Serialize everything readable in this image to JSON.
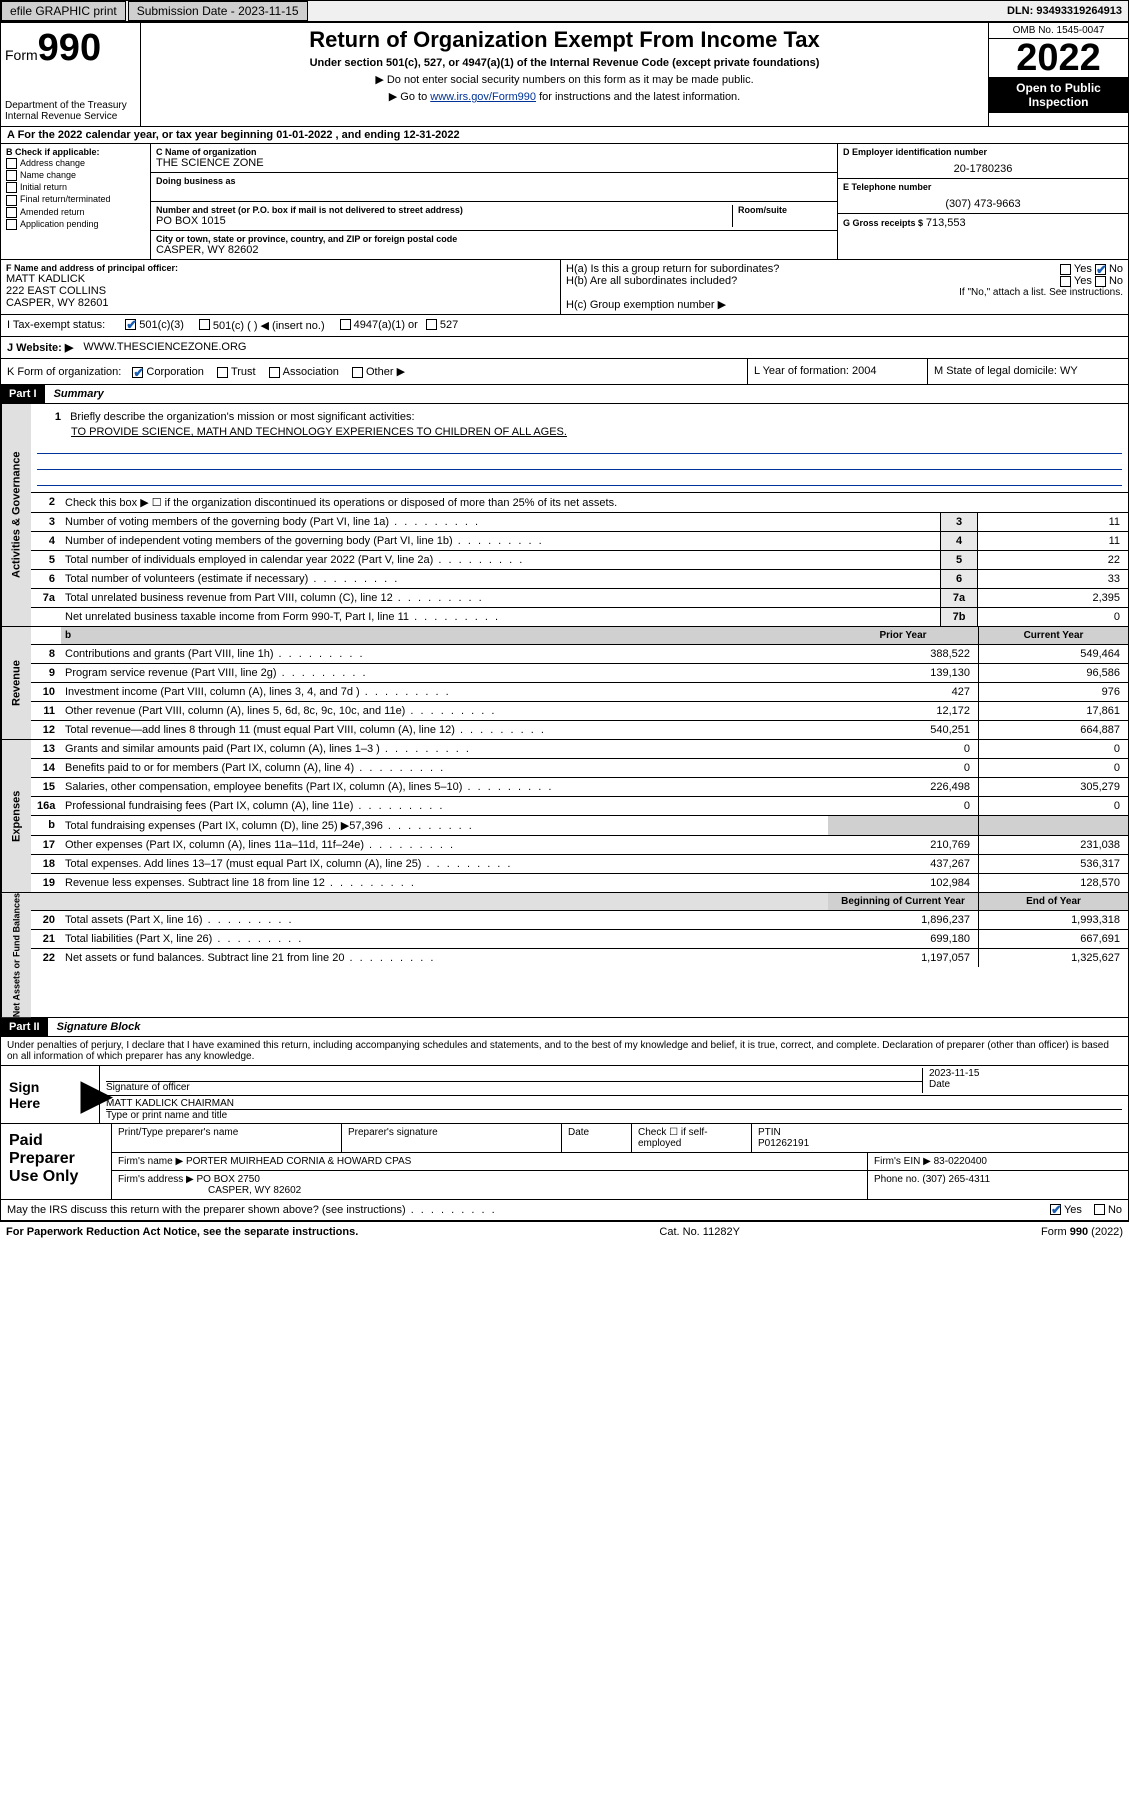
{
  "topbar": {
    "efile": "efile GRAPHIC print",
    "submission_label": "Submission Date - 2023-11-15",
    "dln": "DLN: 93493319264913"
  },
  "header": {
    "form_prefix": "Form",
    "form_number": "990",
    "dept": "Department of the Treasury Internal Revenue Service",
    "title": "Return of Organization Exempt From Income Tax",
    "subtitle": "Under section 501(c), 527, or 4947(a)(1) of the Internal Revenue Code (except private foundations)",
    "instruct1": "▶ Do not enter social security numbers on this form as it may be made public.",
    "instruct2_pre": "▶ Go to ",
    "instruct2_link": "www.irs.gov/Form990",
    "instruct2_post": " for instructions and the latest information.",
    "omb": "OMB No. 1545-0047",
    "year": "2022",
    "open_public": "Open to Public Inspection"
  },
  "A": {
    "text": "A For the 2022 calendar year, or tax year beginning 01-01-2022    , and ending 12-31-2022"
  },
  "B": {
    "label": "B Check if applicable:",
    "items": [
      "Address change",
      "Name change",
      "Initial return",
      "Final return/terminated",
      "Amended return",
      "Application pending"
    ]
  },
  "C": {
    "name_label": "C Name of organization",
    "name": "THE SCIENCE ZONE",
    "dba_label": "Doing business as",
    "street_label": "Number and street (or P.O. box if mail is not delivered to street address)",
    "room_label": "Room/suite",
    "street": "PO BOX 1015",
    "city_label": "City or town, state or province, country, and ZIP or foreign postal code",
    "city": "CASPER, WY  82602"
  },
  "D": {
    "label": "D Employer identification number",
    "value": "20-1780236"
  },
  "E": {
    "label": "E Telephone number",
    "value": "(307) 473-9663"
  },
  "G": {
    "label": "G Gross receipts $",
    "value": "713,553"
  },
  "F": {
    "label": "F  Name and address of principal officer:",
    "name": "MATT KADLICK",
    "addr1": "222 EAST COLLINS",
    "addr2": "CASPER, WY  82601"
  },
  "H": {
    "a": "H(a)  Is this a group return for subordinates?",
    "b": "H(b)  Are all subordinates included?",
    "b_note": "If \"No,\" attach a list. See instructions.",
    "c": "H(c)  Group exemption number ▶",
    "yes": "Yes",
    "no": "No"
  },
  "I": {
    "label": "I   Tax-exempt status:",
    "o1": "501(c)(3)",
    "o2": "501(c) (  ) ◀ (insert no.)",
    "o3": "4947(a)(1) or",
    "o4": "527"
  },
  "J": {
    "label": "J   Website: ▶",
    "value": "WWW.THESCIENCEZONE.ORG"
  },
  "K": {
    "label": "K Form of organization:",
    "o1": "Corporation",
    "o2": "Trust",
    "o3": "Association",
    "o4": "Other ▶"
  },
  "L": {
    "label": "L Year of formation: ",
    "value": "2004"
  },
  "M": {
    "label": "M State of legal domicile: ",
    "value": "WY"
  },
  "partI": {
    "header": "Part I",
    "title": "Summary",
    "mission_label": "Briefly describe the organization's mission or most significant activities:",
    "mission": "TO PROVIDE SCIENCE, MATH AND TECHNOLOGY EXPERIENCES TO CHILDREN OF ALL AGES.",
    "line2": "Check this box ▶ ☐  if the organization discontinued its operations or disposed of more than 25% of its net assets.",
    "prior_year": "Prior Year",
    "current_year": "Current Year",
    "begin_year": "Beginning of Current Year",
    "end_year": "End of Year",
    "vtabs": {
      "gov": "Activities & Governance",
      "rev": "Revenue",
      "exp": "Expenses",
      "net": "Net Assets or Fund Balances"
    },
    "gov": [
      {
        "n": "3",
        "t": "Number of voting members of the governing body (Part VI, line 1a)",
        "k": "3",
        "v": "11"
      },
      {
        "n": "4",
        "t": "Number of independent voting members of the governing body (Part VI, line 1b)",
        "k": "4",
        "v": "11"
      },
      {
        "n": "5",
        "t": "Total number of individuals employed in calendar year 2022 (Part V, line 2a)",
        "k": "5",
        "v": "22"
      },
      {
        "n": "6",
        "t": "Total number of volunteers (estimate if necessary)",
        "k": "6",
        "v": "33"
      },
      {
        "n": "7a",
        "t": "Total unrelated business revenue from Part VIII, column (C), line 12",
        "k": "7a",
        "v": "2,395"
      },
      {
        "n": "",
        "t": "Net unrelated business taxable income from Form 990-T, Part I, line 11",
        "k": "7b",
        "v": "0"
      }
    ],
    "rev": [
      {
        "n": "8",
        "t": "Contributions and grants (Part VIII, line 1h)",
        "p": "388,522",
        "c": "549,464"
      },
      {
        "n": "9",
        "t": "Program service revenue (Part VIII, line 2g)",
        "p": "139,130",
        "c": "96,586"
      },
      {
        "n": "10",
        "t": "Investment income (Part VIII, column (A), lines 3, 4, and 7d )",
        "p": "427",
        "c": "976"
      },
      {
        "n": "11",
        "t": "Other revenue (Part VIII, column (A), lines 5, 6d, 8c, 9c, 10c, and 11e)",
        "p": "12,172",
        "c": "17,861"
      },
      {
        "n": "12",
        "t": "Total revenue—add lines 8 through 11 (must equal Part VIII, column (A), line 12)",
        "p": "540,251",
        "c": "664,887"
      }
    ],
    "exp": [
      {
        "n": "13",
        "t": "Grants and similar amounts paid (Part IX, column (A), lines 1–3 )",
        "p": "0",
        "c": "0"
      },
      {
        "n": "14",
        "t": "Benefits paid to or for members (Part IX, column (A), line 4)",
        "p": "0",
        "c": "0"
      },
      {
        "n": "15",
        "t": "Salaries, other compensation, employee benefits (Part IX, column (A), lines 5–10)",
        "p": "226,498",
        "c": "305,279"
      },
      {
        "n": "16a",
        "t": "Professional fundraising fees (Part IX, column (A), line 11e)",
        "p": "0",
        "c": "0"
      },
      {
        "n": "b",
        "t": "Total fundraising expenses (Part IX, column (D), line 25) ▶57,396",
        "p": "",
        "c": "",
        "gray": true
      },
      {
        "n": "17",
        "t": "Other expenses (Part IX, column (A), lines 11a–11d, 11f–24e)",
        "p": "210,769",
        "c": "231,038"
      },
      {
        "n": "18",
        "t": "Total expenses. Add lines 13–17 (must equal Part IX, column (A), line 25)",
        "p": "437,267",
        "c": "536,317"
      },
      {
        "n": "19",
        "t": "Revenue less expenses. Subtract line 18 from line 12",
        "p": "102,984",
        "c": "128,570"
      }
    ],
    "net": [
      {
        "n": "20",
        "t": "Total assets (Part X, line 16)",
        "p": "1,896,237",
        "c": "1,993,318"
      },
      {
        "n": "21",
        "t": "Total liabilities (Part X, line 26)",
        "p": "699,180",
        "c": "667,691"
      },
      {
        "n": "22",
        "t": "Net assets or fund balances. Subtract line 21 from line 20",
        "p": "1,197,057",
        "c": "1,325,627"
      }
    ]
  },
  "partII": {
    "header": "Part II",
    "title": "Signature Block",
    "declaration": "Under penalties of perjury, I declare that I have examined this return, including accompanying schedules and statements, and to the best of my knowledge and belief, it is true, correct, and complete. Declaration of preparer (other than officer) is based on all information of which preparer has any knowledge.",
    "sign_here": "Sign Here",
    "sig_officer": "Signature of officer",
    "date": "Date",
    "sig_date": "2023-11-15",
    "name_title": "MATT KADLICK  CHAIRMAN",
    "name_title_label": "Type or print name and title"
  },
  "paid": {
    "label": "Paid Preparer Use Only",
    "h1": "Print/Type preparer's name",
    "h2": "Preparer's signature",
    "h3": "Date",
    "check_label": "Check ☐  if self-employed",
    "ptin_label": "PTIN",
    "ptin": "P01262191",
    "firm_name_label": "Firm's name   ▶",
    "firm_name": "PORTER MUIRHEAD CORNIA & HOWARD CPAS",
    "firm_ein_label": "Firm's EIN ▶",
    "firm_ein": "83-0220400",
    "firm_addr_label": "Firm's address ▶",
    "firm_addr1": "PO BOX 2750",
    "firm_addr2": "CASPER, WY  82602",
    "phone_label": "Phone no.",
    "phone": "(307) 265-4311"
  },
  "footer": {
    "discuss": "May the IRS discuss this return with the preparer shown above? (see instructions)",
    "yes": "Yes",
    "no": "No",
    "paperwork": "For Paperwork Reduction Act Notice, see the separate instructions.",
    "cat": "Cat. No. 11282Y",
    "form": "Form 990 (2022)"
  }
}
